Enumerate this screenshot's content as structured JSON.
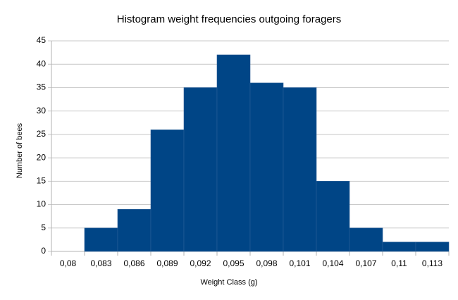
{
  "chart_data": {
    "type": "bar",
    "title": "Histogram weight frequencies outgoing foragers",
    "x_label": "Weight Class (g)",
    "y_label": "Number of bees",
    "categories": [
      "0,08",
      "0,083",
      "0,086",
      "0,089",
      "0,092",
      "0,095",
      "0,098",
      "0,101",
      "0,104",
      "0,107",
      "0,11",
      "0,113"
    ],
    "values": [
      0,
      5,
      9,
      26,
      35,
      42,
      36,
      35,
      15,
      5,
      2,
      2
    ],
    "color": "#004586",
    "ylim": [
      0,
      45
    ],
    "yticks": [
      0,
      5,
      10,
      15,
      20,
      25,
      30,
      35,
      40,
      45
    ],
    "grid": true
  }
}
